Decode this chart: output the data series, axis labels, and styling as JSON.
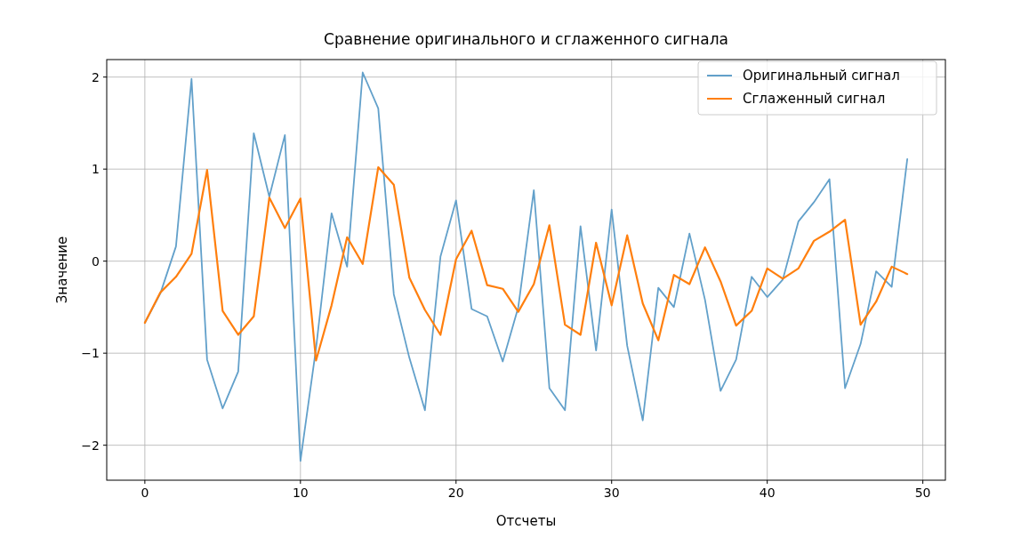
{
  "chart_data": {
    "type": "line",
    "title": "Сравнение оригинального и сглаженного сигнала",
    "xlabel": "Отсчеты",
    "ylabel": "Значение",
    "x": [
      0,
      1,
      2,
      3,
      4,
      5,
      6,
      7,
      8,
      9,
      10,
      11,
      12,
      13,
      14,
      15,
      16,
      17,
      18,
      19,
      20,
      21,
      22,
      23,
      24,
      25,
      26,
      27,
      28,
      29,
      30,
      31,
      32,
      33,
      34,
      35,
      36,
      37,
      38,
      39,
      40,
      41,
      42,
      43,
      44,
      45,
      46,
      47,
      48,
      49
    ],
    "series": [
      {
        "name": "Оригинальный сигнал",
        "color": "#62a0ca",
        "values": [
          -0.67,
          -0.35,
          0.16,
          1.98,
          -1.07,
          -1.6,
          -1.2,
          1.39,
          0.7,
          1.37,
          -2.17,
          -0.95,
          0.52,
          -0.06,
          2.05,
          1.66,
          -0.36,
          -1.05,
          -1.62,
          0.05,
          0.66,
          -0.52,
          -0.6,
          -1.09,
          -0.5,
          0.77,
          -1.38,
          -1.62,
          0.38,
          -0.97,
          0.56,
          -0.92,
          -1.73,
          -0.29,
          -0.5,
          0.3,
          -0.42,
          -1.41,
          -1.07,
          -0.17,
          -0.39,
          -0.2,
          0.43,
          0.64,
          0.89,
          -1.38,
          -0.9,
          -0.11,
          -0.28,
          1.11
        ]
      },
      {
        "name": "Сглаженный сигнал",
        "color": "#ff7f0e",
        "values": [
          -0.67,
          -0.34,
          -0.17,
          0.08,
          0.99,
          -0.54,
          -0.8,
          -0.6,
          0.69,
          0.36,
          0.68,
          -1.08,
          -0.48,
          0.26,
          -0.03,
          1.02,
          0.83,
          -0.18,
          -0.53,
          -0.8,
          0.02,
          0.33,
          -0.26,
          -0.3,
          -0.55,
          -0.25,
          0.39,
          -0.69,
          -0.8,
          0.2,
          -0.48,
          0.28,
          -0.46,
          -0.86,
          -0.15,
          -0.25,
          0.15,
          -0.22,
          -0.7,
          -0.54,
          -0.08,
          -0.19,
          -0.08,
          0.22,
          0.32,
          0.45,
          -0.69,
          -0.44,
          -0.06,
          -0.14
        ]
      }
    ],
    "xlim": [
      -2.45,
      51.45
    ],
    "xticks": [
      0,
      10,
      20,
      30,
      40,
      50
    ],
    "ylim": [
      -2.38,
      2.19
    ],
    "yticks": [
      {
        "value": -2,
        "label": "−2"
      },
      {
        "value": -1,
        "label": "−1"
      },
      0,
      1,
      2
    ],
    "grid": true,
    "legend": "top right"
  }
}
